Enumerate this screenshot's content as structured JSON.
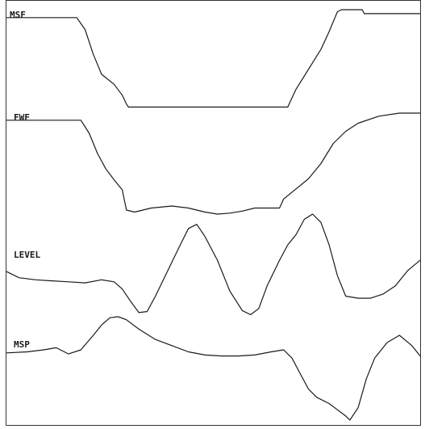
{
  "chart_data": {
    "type": "line",
    "title": "",
    "xlabel": "",
    "ylabel": "",
    "grid": false,
    "x_range": [
      0,
      100
    ],
    "y_range": [
      0,
      1
    ],
    "style": {
      "trace_color": "#1a1a1a",
      "border_color": "#333333",
      "background": "#ffffff"
    },
    "series": [
      {
        "name": "MSF",
        "points": [
          [
            0,
            0.92
          ],
          [
            17,
            0.92
          ],
          [
            19,
            0.8
          ],
          [
            21,
            0.55
          ],
          [
            23,
            0.35
          ],
          [
            26,
            0.25
          ],
          [
            28,
            0.14
          ],
          [
            29,
            0.05
          ],
          [
            29.5,
            0.02
          ],
          [
            68,
            0.02
          ],
          [
            70,
            0.2
          ],
          [
            73,
            0.4
          ],
          [
            76,
            0.6
          ],
          [
            78,
            0.78
          ],
          [
            80,
            0.98
          ],
          [
            81,
            1
          ],
          [
            86,
            1
          ],
          [
            86.5,
            0.96
          ],
          [
            100,
            0.96
          ]
        ]
      },
      {
        "name": "FWF",
        "points": [
          [
            0,
            0.93
          ],
          [
            18,
            0.93
          ],
          [
            20,
            0.8
          ],
          [
            22,
            0.6
          ],
          [
            24,
            0.45
          ],
          [
            26,
            0.34
          ],
          [
            28,
            0.24
          ],
          [
            29,
            0.04
          ],
          [
            31,
            0.02
          ],
          [
            35,
            0.06
          ],
          [
            40,
            0.08
          ],
          [
            44,
            0.06
          ],
          [
            48,
            0.02
          ],
          [
            51,
            0
          ],
          [
            54,
            0.01
          ],
          [
            57,
            0.03
          ],
          [
            60,
            0.06
          ],
          [
            64,
            0.06
          ],
          [
            66,
            0.06
          ],
          [
            67,
            0.15
          ],
          [
            70,
            0.25
          ],
          [
            73,
            0.35
          ],
          [
            76,
            0.5
          ],
          [
            79,
            0.7
          ],
          [
            82,
            0.82
          ],
          [
            85,
            0.9
          ],
          [
            90,
            0.97
          ],
          [
            95,
            1
          ],
          [
            100,
            1
          ]
        ]
      },
      {
        "name": "LEVEL",
        "points": [
          [
            0,
            0.44
          ],
          [
            3,
            0.38
          ],
          [
            7,
            0.36
          ],
          [
            11,
            0.35
          ],
          [
            15,
            0.34
          ],
          [
            19,
            0.33
          ],
          [
            23,
            0.36
          ],
          [
            26,
            0.34
          ],
          [
            28,
            0.27
          ],
          [
            30,
            0.15
          ],
          [
            32,
            0.04
          ],
          [
            34,
            0.05
          ],
          [
            36,
            0.2
          ],
          [
            39,
            0.45
          ],
          [
            42,
            0.7
          ],
          [
            44,
            0.86
          ],
          [
            46,
            0.9
          ],
          [
            48,
            0.78
          ],
          [
            51,
            0.55
          ],
          [
            54,
            0.25
          ],
          [
            57,
            0.06
          ],
          [
            59,
            0.02
          ],
          [
            61,
            0.08
          ],
          [
            63,
            0.3
          ],
          [
            66,
            0.55
          ],
          [
            68,
            0.7
          ],
          [
            70,
            0.8
          ],
          [
            72,
            0.95
          ],
          [
            74,
            1
          ],
          [
            76,
            0.92
          ],
          [
            78,
            0.7
          ],
          [
            80,
            0.4
          ],
          [
            82,
            0.2
          ],
          [
            85,
            0.18
          ],
          [
            88,
            0.18
          ],
          [
            91,
            0.22
          ],
          [
            94,
            0.3
          ],
          [
            97,
            0.45
          ],
          [
            100,
            0.55
          ]
        ]
      },
      {
        "name": "MSP",
        "points": [
          [
            0,
            0.65
          ],
          [
            5,
            0.66
          ],
          [
            9,
            0.68
          ],
          [
            12,
            0.7
          ],
          [
            15,
            0.64
          ],
          [
            18,
            0.68
          ],
          [
            21,
            0.82
          ],
          [
            23,
            0.92
          ],
          [
            25,
            0.99
          ],
          [
            27,
            1
          ],
          [
            29,
            0.97
          ],
          [
            32,
            0.88
          ],
          [
            36,
            0.78
          ],
          [
            40,
            0.72
          ],
          [
            44,
            0.66
          ],
          [
            48,
            0.63
          ],
          [
            52,
            0.62
          ],
          [
            56,
            0.62
          ],
          [
            60,
            0.63
          ],
          [
            64,
            0.66
          ],
          [
            67,
            0.68
          ],
          [
            69,
            0.6
          ],
          [
            71,
            0.45
          ],
          [
            73,
            0.3
          ],
          [
            75,
            0.22
          ],
          [
            78,
            0.16
          ],
          [
            80,
            0.1
          ],
          [
            82,
            0.04
          ],
          [
            83,
            0
          ],
          [
            85,
            0.12
          ],
          [
            87,
            0.4
          ],
          [
            89,
            0.6
          ],
          [
            92,
            0.75
          ],
          [
            95,
            0.82
          ],
          [
            98,
            0.72
          ],
          [
            100,
            0.62
          ]
        ]
      }
    ]
  }
}
